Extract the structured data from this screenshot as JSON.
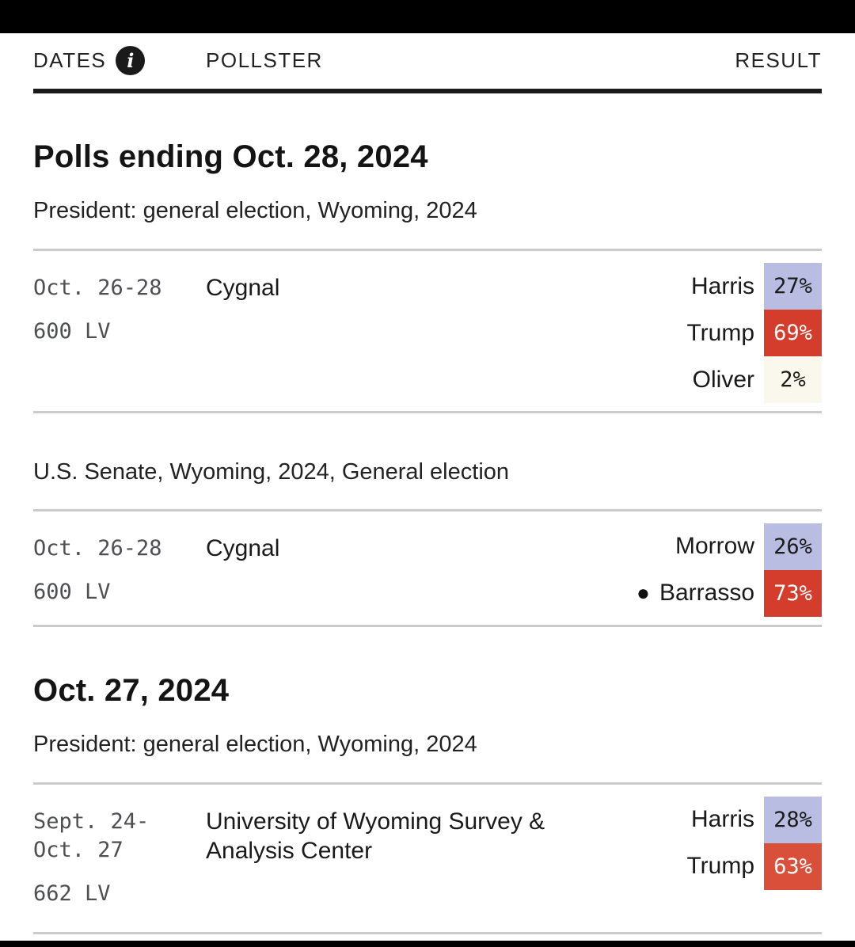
{
  "colors": {
    "dem_badge": "#b9bde2",
    "rep_badge_high": "#d43c2c",
    "rep_badge_mid": "#d94f39",
    "other_badge": "#faf7ec",
    "badge_text_dark": "#1a1a1a",
    "badge_text_light": "#ffffff"
  },
  "header": {
    "dates_label": "DATES",
    "info_icon_glyph": "i",
    "pollster_label": "POLLSTER",
    "result_label": "RESULT"
  },
  "groups": [
    {
      "title": "Polls ending Oct. 28, 2024",
      "sections": [
        {
          "race": "President: general election, Wyoming, 2024",
          "polls": [
            {
              "dates_line1": "Oct. 26-28",
              "sample": "600 LV",
              "pollster": "Cygnal",
              "results": [
                {
                  "candidate": "Harris",
                  "value": "27%",
                  "badge_color": "#b9bde2",
                  "text_color": "#1a1a1a"
                },
                {
                  "candidate": "Trump",
                  "value": "69%",
                  "badge_color": "#d43c2c",
                  "text_color": "#ffffff"
                },
                {
                  "candidate": "Oliver",
                  "value": "2%",
                  "badge_color": "#faf7ec",
                  "text_color": "#1a1a1a"
                }
              ]
            }
          ]
        },
        {
          "race": "U.S. Senate, Wyoming, 2024, General election",
          "polls": [
            {
              "dates_line1": "Oct. 26-28",
              "sample": "600 LV",
              "pollster": "Cygnal",
              "results": [
                {
                  "candidate": "Morrow",
                  "value": "26%",
                  "badge_color": "#b9bde2",
                  "text_color": "#1a1a1a"
                },
                {
                  "candidate": "Barrasso",
                  "value": "73%",
                  "incumbent_marker": "●",
                  "badge_color": "#d43c2c",
                  "text_color": "#ffffff"
                }
              ]
            }
          ]
        }
      ]
    },
    {
      "title": "Oct. 27, 2024",
      "sections": [
        {
          "race": "President: general election, Wyoming, 2024",
          "polls": [
            {
              "dates_line1": "Sept. 24-",
              "dates_line2": "Oct. 27",
              "sample": "662 LV",
              "pollster": "University of Wyoming Survey & Analysis Center",
              "results": [
                {
                  "candidate": "Harris",
                  "value": "28%",
                  "badge_color": "#b9bde2",
                  "text_color": "#1a1a1a"
                },
                {
                  "candidate": "Trump",
                  "value": "63%",
                  "badge_color": "#d94f39",
                  "text_color": "#ffffff"
                }
              ]
            }
          ]
        }
      ]
    }
  ]
}
